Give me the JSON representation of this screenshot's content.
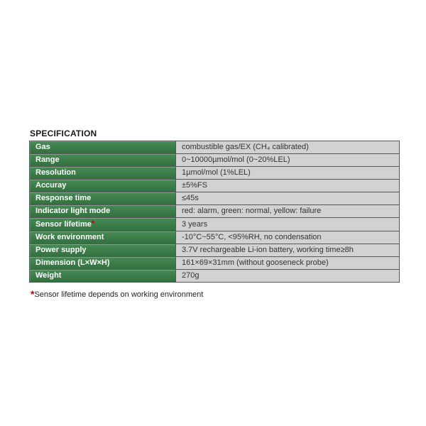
{
  "colors": {
    "label-bg": "#3a7b47",
    "label-bg-light": "#478a55",
    "value-bg": "#d2d2d2",
    "border": "#57585a",
    "label-text": "#ffffff",
    "value-text": "#333333",
    "mark": "#c00000",
    "title-text": "#1a1a1a"
  },
  "title": "SPECIFICATION",
  "table": {
    "rows": [
      {
        "label": "Gas",
        "value": "combustible gas/EX (CH₄ calibrated)"
      },
      {
        "label": "Range",
        "value": "0~10000µmol/mol (0~20%LEL)"
      },
      {
        "label": "Resolution",
        "value": "1µmol/mol (1%LEL)"
      },
      {
        "label": "Accuray",
        "value": "±5%FS"
      },
      {
        "label": "Response time",
        "value": "≤45s"
      },
      {
        "label": "Indicator light mode",
        "value": "red: alarm, green: normal, yellow: failure"
      },
      {
        "label": "Sensor lifetime",
        "mark": "*",
        "value": "3 years"
      },
      {
        "label": "Work environment",
        "value": "-10°C~55°C, <95%RH, no condensation"
      },
      {
        "label": "Power supply",
        "value": "3.7V rechargeable Li-ion battery, working time≥8h"
      },
      {
        "label": "Dimension (L×W×H)",
        "value": "161×69×31mm (without gooseneck probe)"
      },
      {
        "label": "Weight",
        "value": "270g"
      }
    ]
  },
  "footnote": {
    "mark": "*",
    "text": "Sensor lifetime depends on working environment"
  }
}
